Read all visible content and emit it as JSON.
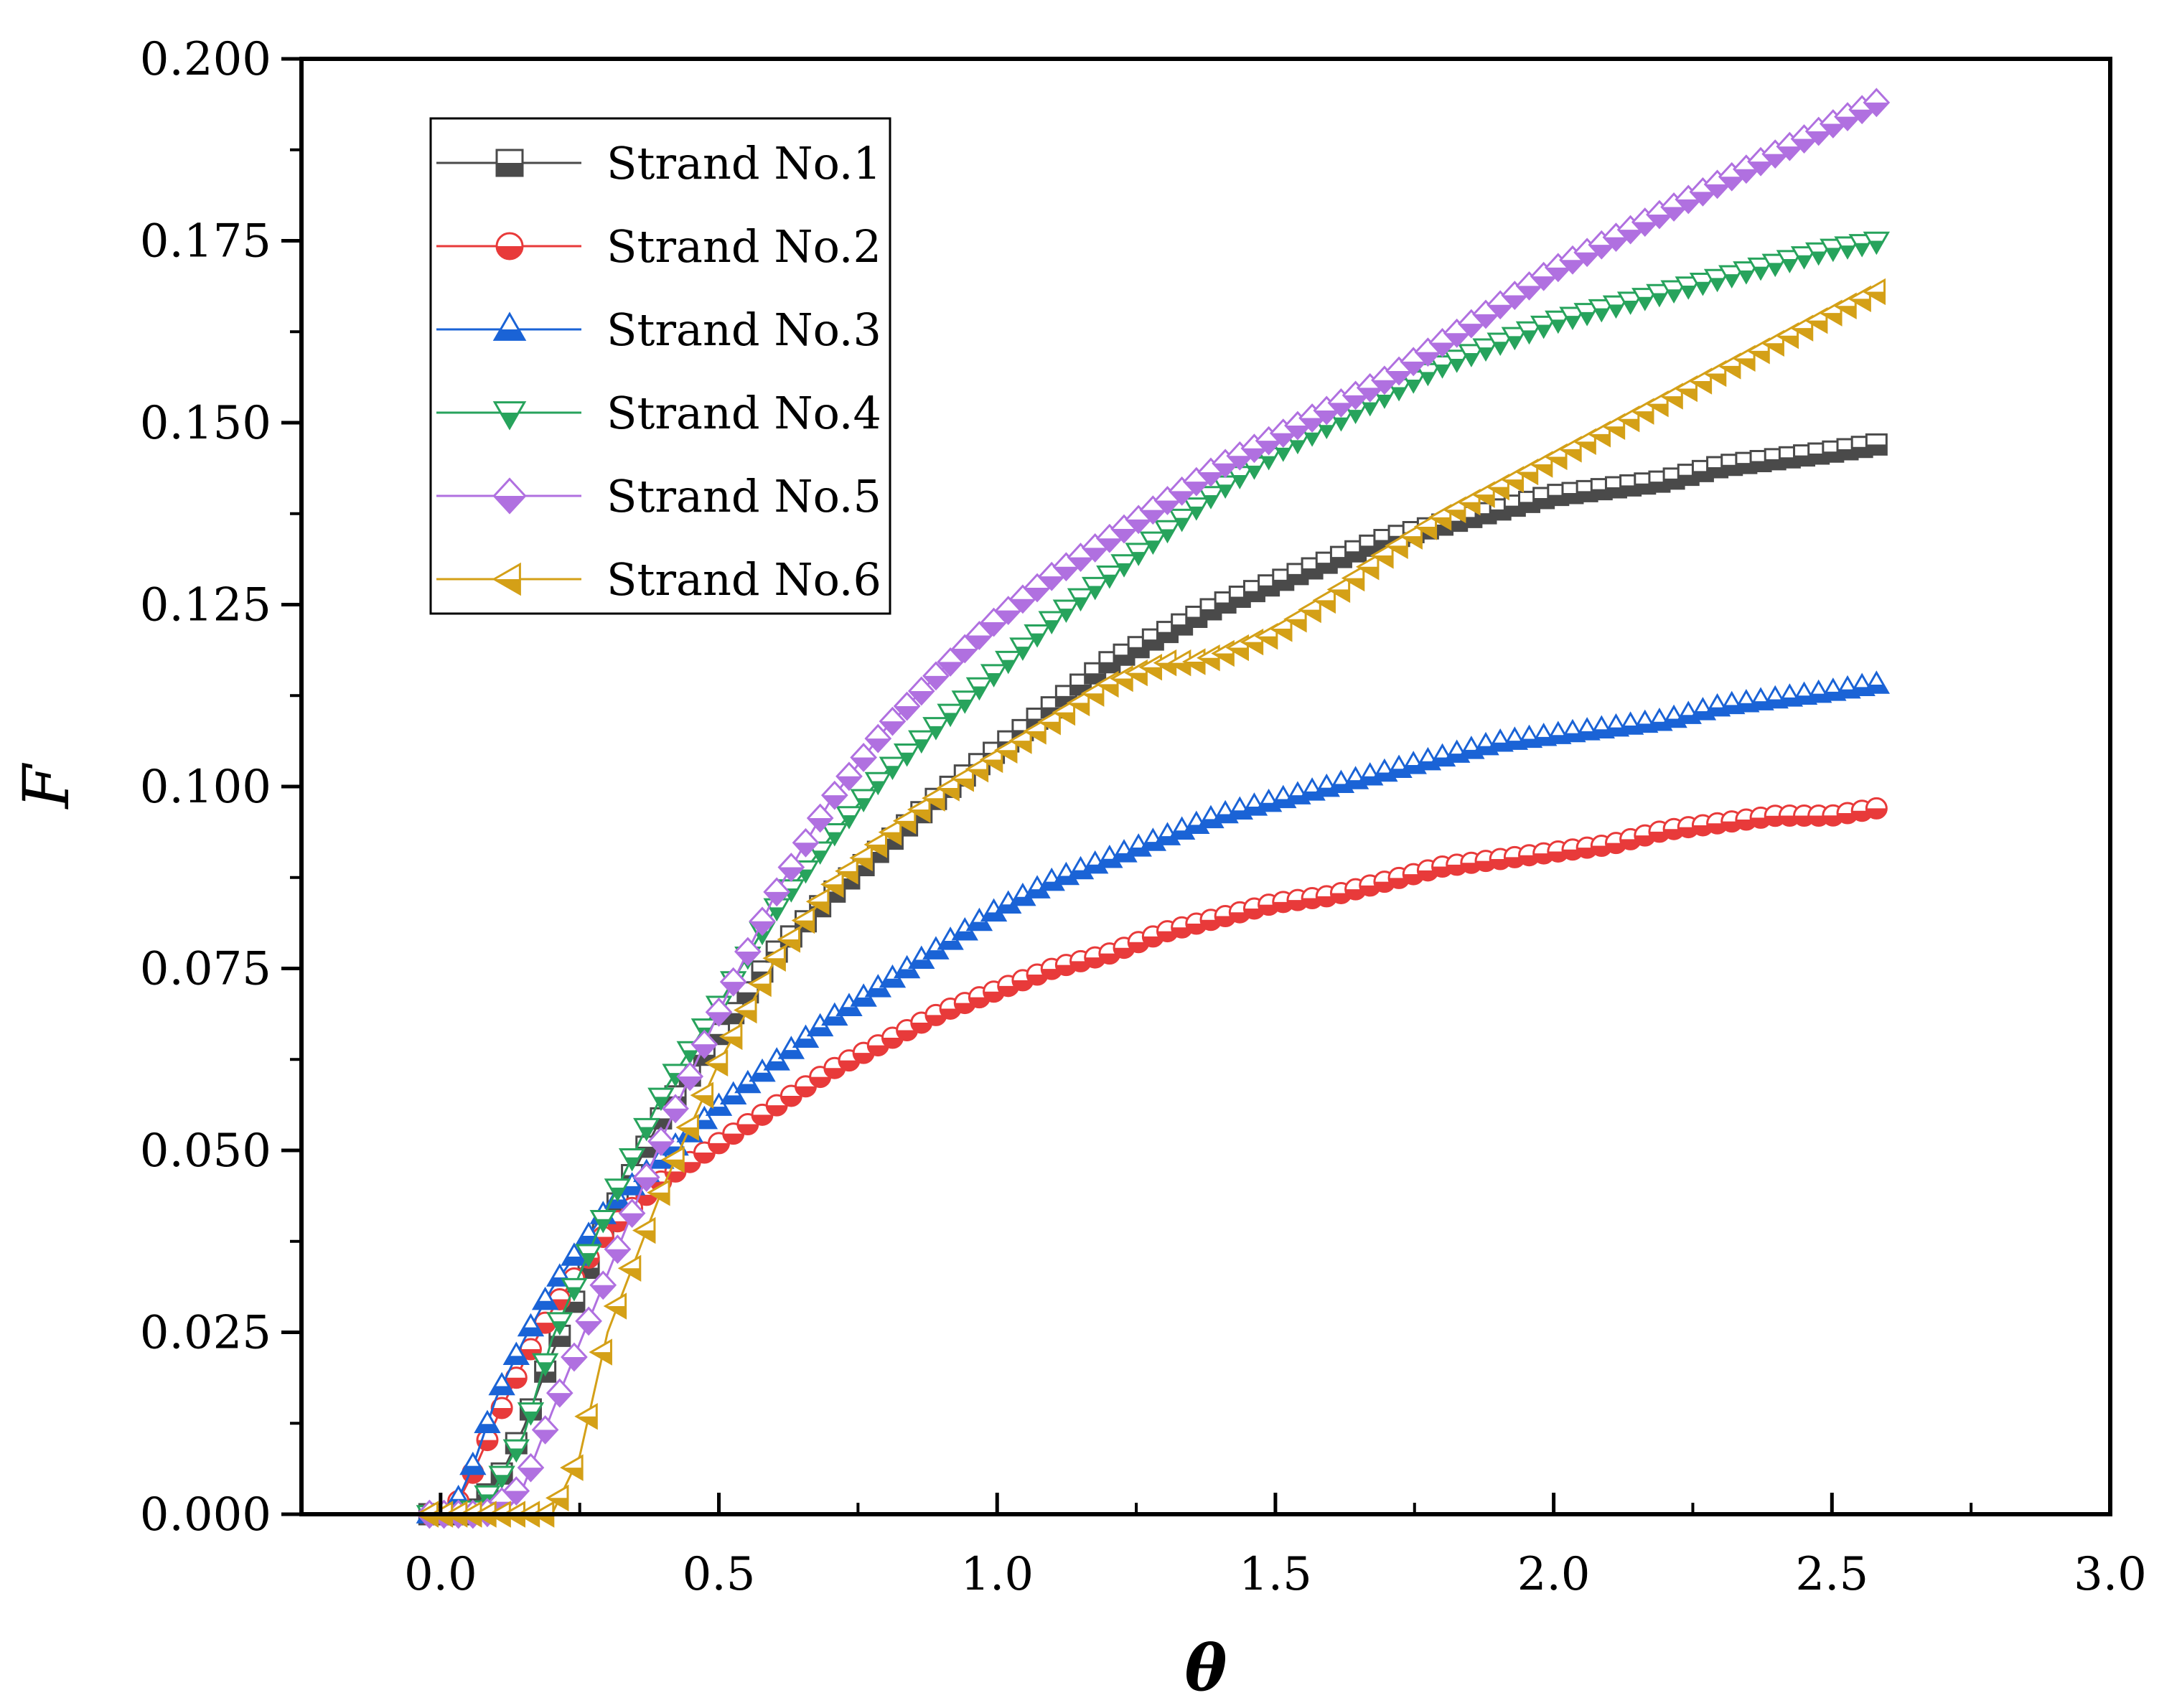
{
  "chart_data": {
    "type": "line",
    "title": "",
    "xlabel": "θ",
    "ylabel": "F",
    "xlim": [
      -0.25,
      3.0
    ],
    "ylim": [
      0,
      0.2
    ],
    "xticks": [
      0.0,
      0.5,
      1.0,
      1.5,
      2.0,
      2.5,
      3.0
    ],
    "xtick_labels": [
      "0.0",
      "0.5",
      "1.0",
      "1.5",
      "2.0",
      "2.5",
      "3.0"
    ],
    "yticks": [
      0,
      0.025,
      0.05,
      0.075,
      0.1,
      0.125,
      0.15,
      0.175,
      0.2
    ],
    "ytick_labels": [
      "0.000",
      "0.025",
      "0.050",
      "0.075",
      "0.100",
      "0.125",
      "0.150",
      "0.175",
      "0.200"
    ],
    "legend_position": "top-left",
    "grid": false,
    "series": [
      {
        "name": "Strand No.1",
        "marker": "square",
        "color": "#4a4a4a",
        "points": [
          [
            -0.02,
            0
          ],
          [
            0.05,
            0
          ],
          [
            0.1,
            0.004
          ],
          [
            0.15,
            0.012
          ],
          [
            0.2,
            0.022
          ],
          [
            0.3,
            0.04
          ],
          [
            0.4,
            0.055
          ],
          [
            0.5,
            0.066
          ],
          [
            0.6,
            0.077
          ],
          [
            0.7,
            0.085
          ],
          [
            0.8,
            0.092
          ],
          [
            0.9,
            0.099
          ],
          [
            1.0,
            0.105
          ],
          [
            1.1,
            0.111
          ],
          [
            1.2,
            0.117
          ],
          [
            1.3,
            0.121
          ],
          [
            1.4,
            0.125
          ],
          [
            1.5,
            0.128
          ],
          [
            1.6,
            0.131
          ],
          [
            1.7,
            0.134
          ],
          [
            1.8,
            0.136
          ],
          [
            1.9,
            0.138
          ],
          [
            2.0,
            0.14
          ],
          [
            2.1,
            0.141
          ],
          [
            2.2,
            0.142
          ],
          [
            2.3,
            0.144
          ],
          [
            2.4,
            0.145
          ],
          [
            2.5,
            0.146
          ],
          [
            2.58,
            0.147
          ]
        ]
      },
      {
        "name": "Strand No.2",
        "marker": "circle",
        "color": "#e83a3a",
        "points": [
          [
            -0.02,
            0
          ],
          [
            0.02,
            0
          ],
          [
            0.06,
            0.006
          ],
          [
            0.1,
            0.013
          ],
          [
            0.15,
            0.021
          ],
          [
            0.2,
            0.028
          ],
          [
            0.3,
            0.039
          ],
          [
            0.4,
            0.046
          ],
          [
            0.5,
            0.051
          ],
          [
            0.6,
            0.056
          ],
          [
            0.7,
            0.061
          ],
          [
            0.8,
            0.065
          ],
          [
            0.9,
            0.069
          ],
          [
            1.0,
            0.072
          ],
          [
            1.1,
            0.075
          ],
          [
            1.2,
            0.077
          ],
          [
            1.3,
            0.08
          ],
          [
            1.4,
            0.082
          ],
          [
            1.5,
            0.084
          ],
          [
            1.6,
            0.085
          ],
          [
            1.7,
            0.087
          ],
          [
            1.8,
            0.089
          ],
          [
            1.9,
            0.09
          ],
          [
            2.0,
            0.091
          ],
          [
            2.1,
            0.092
          ],
          [
            2.2,
            0.094
          ],
          [
            2.3,
            0.095
          ],
          [
            2.4,
            0.096
          ],
          [
            2.5,
            0.096
          ],
          [
            2.58,
            0.097
          ]
        ]
      },
      {
        "name": "Strand No.3",
        "marker": "triangle-up",
        "color": "#1a63d6",
        "points": [
          [
            -0.02,
            0
          ],
          [
            0.02,
            0
          ],
          [
            0.06,
            0.007
          ],
          [
            0.1,
            0.016
          ],
          [
            0.15,
            0.024
          ],
          [
            0.2,
            0.031
          ],
          [
            0.3,
            0.042
          ],
          [
            0.4,
            0.049
          ],
          [
            0.5,
            0.056
          ],
          [
            0.6,
            0.062
          ],
          [
            0.7,
            0.068
          ],
          [
            0.8,
            0.073
          ],
          [
            0.9,
            0.078
          ],
          [
            1.0,
            0.083
          ],
          [
            1.1,
            0.087
          ],
          [
            1.2,
            0.09
          ],
          [
            1.3,
            0.093
          ],
          [
            1.4,
            0.096
          ],
          [
            1.5,
            0.098
          ],
          [
            1.6,
            0.1
          ],
          [
            1.7,
            0.102
          ],
          [
            1.8,
            0.104
          ],
          [
            1.9,
            0.106
          ],
          [
            2.0,
            0.107
          ],
          [
            2.1,
            0.108
          ],
          [
            2.2,
            0.109
          ],
          [
            2.3,
            0.111
          ],
          [
            2.4,
            0.112
          ],
          [
            2.5,
            0.113
          ],
          [
            2.58,
            0.114
          ]
        ]
      },
      {
        "name": "Strand No.4",
        "marker": "triangle-down",
        "color": "#27a35c",
        "points": [
          [
            -0.02,
            0
          ],
          [
            0.05,
            0
          ],
          [
            0.1,
            0.004
          ],
          [
            0.15,
            0.011
          ],
          [
            0.2,
            0.024
          ],
          [
            0.3,
            0.042
          ],
          [
            0.4,
            0.058
          ],
          [
            0.5,
            0.07
          ],
          [
            0.6,
            0.083
          ],
          [
            0.7,
            0.093
          ],
          [
            0.8,
            0.102
          ],
          [
            0.9,
            0.109
          ],
          [
            1.0,
            0.116
          ],
          [
            1.1,
            0.123
          ],
          [
            1.2,
            0.129
          ],
          [
            1.3,
            0.135
          ],
          [
            1.4,
            0.141
          ],
          [
            1.5,
            0.146
          ],
          [
            1.6,
            0.15
          ],
          [
            1.7,
            0.154
          ],
          [
            1.8,
            0.158
          ],
          [
            1.9,
            0.161
          ],
          [
            2.0,
            0.164
          ],
          [
            2.1,
            0.166
          ],
          [
            2.2,
            0.168
          ],
          [
            2.3,
            0.17
          ],
          [
            2.4,
            0.172
          ],
          [
            2.5,
            0.174
          ],
          [
            2.58,
            0.175
          ]
        ]
      },
      {
        "name": "Strand No.5",
        "marker": "diamond",
        "color": "#b070e0",
        "points": [
          [
            -0.02,
            0
          ],
          [
            0.08,
            0
          ],
          [
            0.15,
            0.004
          ],
          [
            0.2,
            0.014
          ],
          [
            0.3,
            0.033
          ],
          [
            0.4,
            0.052
          ],
          [
            0.5,
            0.069
          ],
          [
            0.6,
            0.085
          ],
          [
            0.7,
            0.098
          ],
          [
            0.8,
            0.108
          ],
          [
            0.9,
            0.116
          ],
          [
            1.0,
            0.123
          ],
          [
            1.1,
            0.129
          ],
          [
            1.2,
            0.134
          ],
          [
            1.3,
            0.139
          ],
          [
            1.4,
            0.144
          ],
          [
            1.5,
            0.148
          ],
          [
            1.6,
            0.152
          ],
          [
            1.7,
            0.156
          ],
          [
            1.8,
            0.161
          ],
          [
            1.9,
            0.166
          ],
          [
            2.0,
            0.171
          ],
          [
            2.1,
            0.175
          ],
          [
            2.2,
            0.179
          ],
          [
            2.3,
            0.183
          ],
          [
            2.4,
            0.187
          ],
          [
            2.5,
            0.191
          ],
          [
            2.58,
            0.194
          ]
        ]
      },
      {
        "name": "Strand No.6",
        "marker": "triangle-left",
        "color": "#d4a017",
        "points": [
          [
            -0.02,
            0
          ],
          [
            0.2,
            0
          ],
          [
            0.25,
            0.008
          ],
          [
            0.3,
            0.025
          ],
          [
            0.4,
            0.045
          ],
          [
            0.5,
            0.062
          ],
          [
            0.6,
            0.076
          ],
          [
            0.7,
            0.086
          ],
          [
            0.8,
            0.093
          ],
          [
            0.9,
            0.099
          ],
          [
            1.0,
            0.104
          ],
          [
            1.1,
            0.109
          ],
          [
            1.2,
            0.114
          ],
          [
            1.3,
            0.117
          ],
          [
            1.35,
            0.117
          ],
          [
            1.4,
            0.118
          ],
          [
            1.5,
            0.121
          ],
          [
            1.6,
            0.126
          ],
          [
            1.7,
            0.132
          ],
          [
            1.8,
            0.137
          ],
          [
            1.9,
            0.141
          ],
          [
            2.0,
            0.145
          ],
          [
            2.1,
            0.149
          ],
          [
            2.2,
            0.153
          ],
          [
            2.3,
            0.157
          ],
          [
            2.4,
            0.161
          ],
          [
            2.5,
            0.165
          ],
          [
            2.58,
            0.168
          ]
        ]
      }
    ]
  }
}
